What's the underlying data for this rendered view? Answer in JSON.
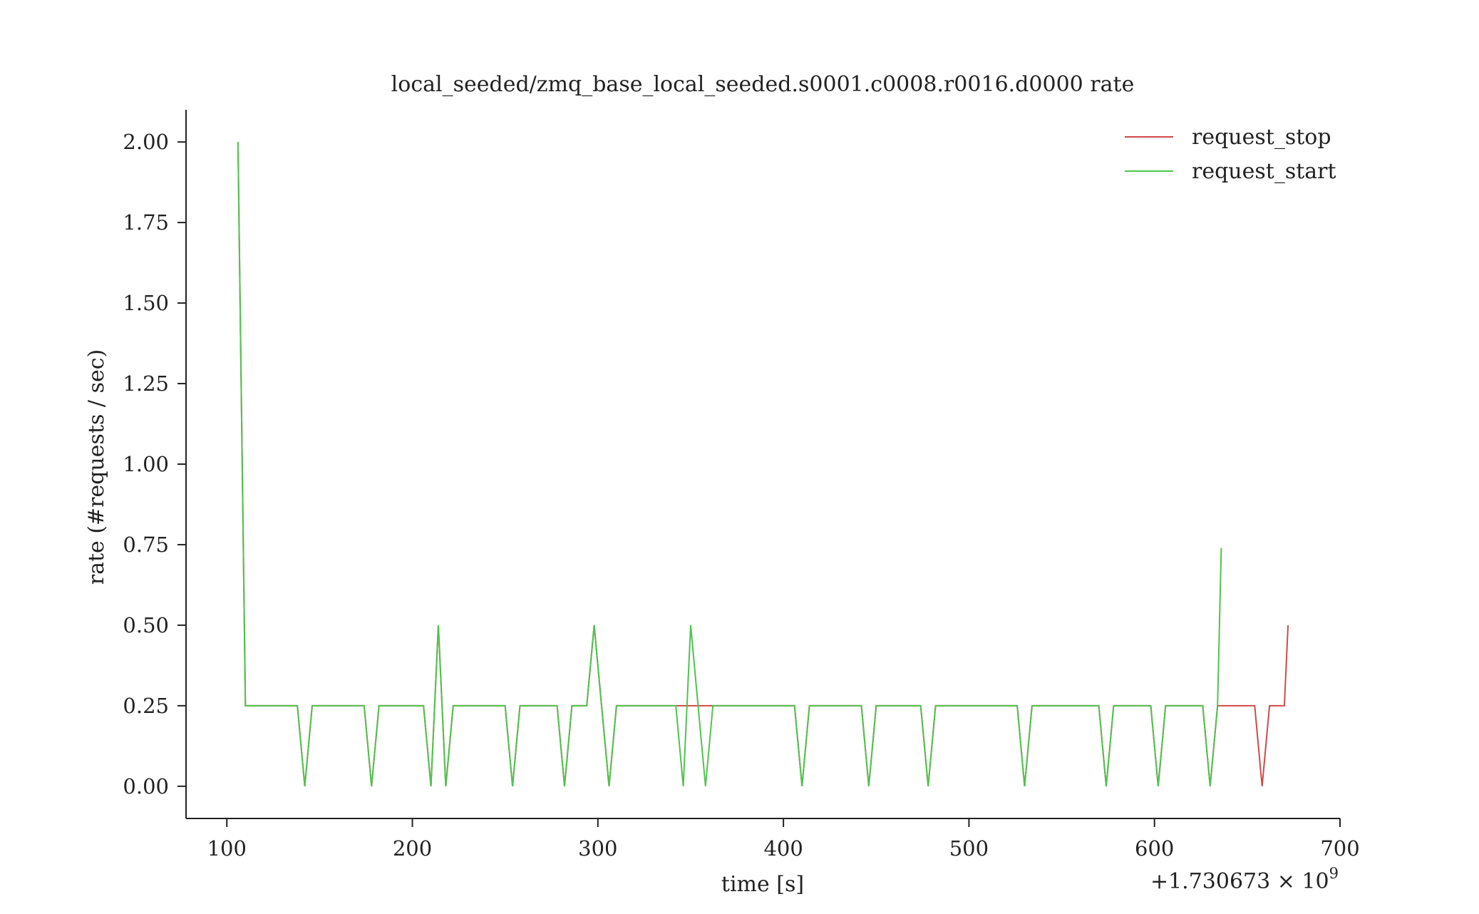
{
  "chart_data": {
    "type": "line",
    "title": "local_seeded/zmq_base_local_seeded.s0001.c0008.r0016.d0000 rate",
    "xlabel": "time [s]",
    "ylabel": "rate (#requests / sec)",
    "x_offset_label": "+1.730673 × 10",
    "x_offset_exponent": "9",
    "xlim": [
      78,
      700
    ],
    "ylim": [
      -0.1,
      2.1
    ],
    "xticks": [
      100,
      200,
      300,
      400,
      500,
      600,
      700
    ],
    "yticks": [
      0.0,
      0.25,
      0.5,
      0.75,
      1.0,
      1.25,
      1.5,
      1.75,
      2.0
    ],
    "x_tick_labels": [
      "100",
      "200",
      "300",
      "400",
      "500",
      "600",
      "700"
    ],
    "y_tick_labels": [
      "0.00",
      "0.25",
      "0.50",
      "0.75",
      "1.00",
      "1.25",
      "1.50",
      "1.75",
      "2.00"
    ],
    "grid": false,
    "legend_position": "top-right",
    "series": [
      {
        "name": "request_stop",
        "color": "#d04a4a",
        "points": [
          [
            106,
            2.0
          ],
          [
            110,
            0.25
          ],
          [
            138,
            0.25
          ],
          [
            142,
            0.0
          ],
          [
            146,
            0.25
          ],
          [
            174,
            0.25
          ],
          [
            178,
            0.0
          ],
          [
            182,
            0.25
          ],
          [
            206,
            0.25
          ],
          [
            210,
            0.0
          ],
          [
            214,
            0.5
          ],
          [
            218,
            0.0
          ],
          [
            222,
            0.25
          ],
          [
            250,
            0.25
          ],
          [
            254,
            0.0
          ],
          [
            258,
            0.25
          ],
          [
            278,
            0.25
          ],
          [
            282,
            0.0
          ],
          [
            286,
            0.25
          ],
          [
            294,
            0.25
          ],
          [
            298,
            0.5
          ],
          [
            302,
            0.25
          ],
          [
            306,
            0.0
          ],
          [
            310,
            0.25
          ],
          [
            358,
            0.25
          ],
          [
            362,
            0.25
          ],
          [
            406,
            0.25
          ],
          [
            410,
            0.0
          ],
          [
            414,
            0.25
          ],
          [
            442,
            0.25
          ],
          [
            446,
            0.0
          ],
          [
            450,
            0.25
          ],
          [
            474,
            0.25
          ],
          [
            478,
            0.0
          ],
          [
            482,
            0.25
          ],
          [
            526,
            0.25
          ],
          [
            530,
            0.0
          ],
          [
            534,
            0.25
          ],
          [
            570,
            0.25
          ],
          [
            574,
            0.0
          ],
          [
            578,
            0.25
          ],
          [
            598,
            0.25
          ],
          [
            602,
            0.0
          ],
          [
            606,
            0.25
          ],
          [
            626,
            0.25
          ],
          [
            630,
            0.0
          ],
          [
            634,
            0.25
          ],
          [
            654,
            0.25
          ],
          [
            658,
            0.0
          ],
          [
            662,
            0.25
          ],
          [
            670,
            0.25
          ],
          [
            672,
            0.5
          ]
        ]
      },
      {
        "name": "request_start",
        "color": "#4fc44f",
        "points": [
          [
            106,
            2.0
          ],
          [
            110,
            0.25
          ],
          [
            138,
            0.25
          ],
          [
            142,
            0.0
          ],
          [
            146,
            0.25
          ],
          [
            174,
            0.25
          ],
          [
            178,
            0.0
          ],
          [
            182,
            0.25
          ],
          [
            206,
            0.25
          ],
          [
            210,
            0.0
          ],
          [
            214,
            0.5
          ],
          [
            218,
            0.0
          ],
          [
            222,
            0.25
          ],
          [
            250,
            0.25
          ],
          [
            254,
            0.0
          ],
          [
            258,
            0.25
          ],
          [
            278,
            0.25
          ],
          [
            282,
            0.0
          ],
          [
            286,
            0.25
          ],
          [
            294,
            0.25
          ],
          [
            298,
            0.5
          ],
          [
            302,
            0.25
          ],
          [
            306,
            0.0
          ],
          [
            310,
            0.25
          ],
          [
            342,
            0.25
          ],
          [
            346,
            0.0
          ],
          [
            350,
            0.5
          ],
          [
            354,
            0.25
          ],
          [
            358,
            0.0
          ],
          [
            362,
            0.25
          ],
          [
            406,
            0.25
          ],
          [
            410,
            0.0
          ],
          [
            414,
            0.25
          ],
          [
            442,
            0.25
          ],
          [
            446,
            0.0
          ],
          [
            450,
            0.25
          ],
          [
            474,
            0.25
          ],
          [
            478,
            0.0
          ],
          [
            482,
            0.25
          ],
          [
            526,
            0.25
          ],
          [
            530,
            0.0
          ],
          [
            534,
            0.25
          ],
          [
            570,
            0.25
          ],
          [
            574,
            0.0
          ],
          [
            578,
            0.25
          ],
          [
            598,
            0.25
          ],
          [
            602,
            0.0
          ],
          [
            606,
            0.25
          ],
          [
            626,
            0.25
          ],
          [
            630,
            0.0
          ],
          [
            634,
            0.25
          ],
          [
            636,
            0.74
          ]
        ]
      }
    ]
  }
}
